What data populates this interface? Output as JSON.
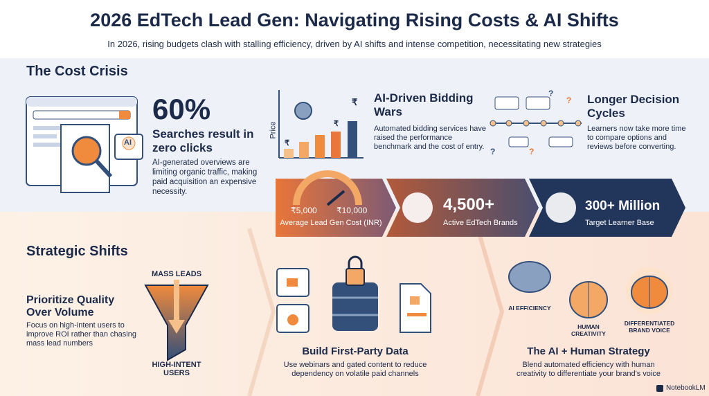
{
  "header": {
    "title": "2026 EdTech Lead Gen: Navigating Rising Costs & AI Shifts",
    "subtitle": "In 2026, rising budgets clash with stalling efficiency, driven by AI shifts and intense competition, necessitating new strategies"
  },
  "cost_crisis": {
    "heading": "The Cost Crisis",
    "zero_click": {
      "icon_label": "AI",
      "stat": "60%",
      "label": "Searches result in zero clicks",
      "description": "AI-generated overviews are limiting organic traffic, making paid acquisition an expensive necessity."
    },
    "bidding": {
      "axis_label": "Price",
      "coin_symbol": "₹",
      "title": "AI-Driven Bidding Wars",
      "description": "Automated bidding services have raised the performance benchmark and the cost of entry."
    },
    "decision": {
      "icon_symbol": "?",
      "title": "Longer Decision Cycles",
      "description": "Learners now take more time to compare options and reviews before converting."
    },
    "banner": [
      {
        "low": "₹5,000",
        "high": "₹10,000",
        "label": "Average Lead Gen Cost (INR)"
      },
      {
        "stat": "4,500+",
        "label": "Active EdTech Brands"
      },
      {
        "stat": "300+ Million",
        "label": "Target Learner Base"
      }
    ]
  },
  "strategic_shifts": {
    "heading": "Strategic Shifts",
    "quality": {
      "title": "Prioritize Quality Over Volume",
      "description": "Focus on high-intent users to improve ROI rather than chasing mass lead numbers",
      "funnel_top": "MASS LEADS",
      "funnel_bottom": "HIGH-INTENT USERS"
    },
    "first_party": {
      "title": "Build First-Party Data",
      "description": "Use webinars and gated content to reduce dependency on volatile paid channels"
    },
    "ai_human": {
      "title": "The AI + Human Strategy",
      "description": "Blend automated efficiency with human creativity to differentiate your brand's voice",
      "labels": [
        "AI EFFICIENCY",
        "HUMAN CREATIVITY",
        "DIFFERENTIATED BRAND VOICE"
      ]
    }
  },
  "footer": {
    "brand": "NotebookLM"
  }
}
